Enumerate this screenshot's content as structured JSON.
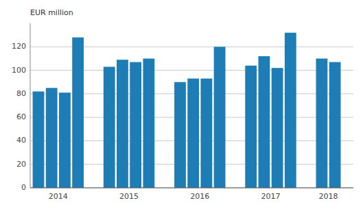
{
  "chart_data": {
    "type": "bar",
    "y_label": "EUR million",
    "categories": [
      "2014",
      "2015",
      "2016",
      "2017",
      "2018"
    ],
    "values": [
      [
        82,
        85,
        81,
        128
      ],
      [
        103,
        109,
        107,
        110
      ],
      [
        90,
        93,
        93,
        120
      ],
      [
        104,
        112,
        102,
        132
      ],
      [
        110,
        107
      ]
    ],
    "color": "#1f7db5",
    "ylim": [
      0,
      140
    ],
    "yticks": [
      0,
      20,
      40,
      60,
      80,
      100,
      120
    ],
    "grid": true
  }
}
